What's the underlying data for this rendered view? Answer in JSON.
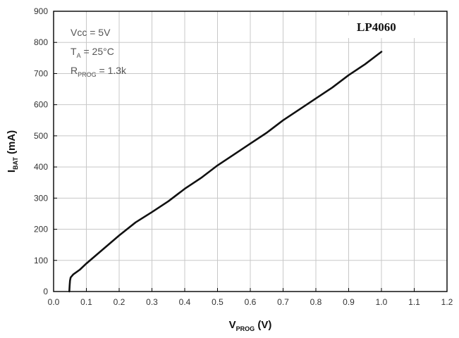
{
  "chart_data": {
    "type": "line",
    "title": "",
    "part_label": "LP4060",
    "xlabel": {
      "main": "V",
      "sub": "PROG",
      "unit": " (V)"
    },
    "ylabel": {
      "main": "I",
      "sub": "BAT",
      "unit": " (mA)"
    },
    "xlim": [
      0.0,
      1.2
    ],
    "ylim": [
      0,
      900
    ],
    "x_ticks": [
      0.0,
      0.1,
      0.2,
      0.3,
      0.4,
      0.5,
      0.6,
      0.7,
      0.8,
      0.9,
      1.0,
      1.1,
      1.2
    ],
    "x_tick_labels": [
      "0.0",
      "0.1",
      "0.2",
      "0.3",
      "0.4",
      "0.5",
      "0.6",
      "0.7",
      "0.8",
      "0.9",
      "1.0",
      "1.1",
      "1.2"
    ],
    "y_ticks": [
      0,
      100,
      200,
      300,
      400,
      500,
      600,
      700,
      800,
      900
    ],
    "y_tick_labels": [
      "0",
      "100",
      "200",
      "300",
      "400",
      "500",
      "600",
      "700",
      "800",
      "900"
    ],
    "grid": true,
    "conditions": [
      {
        "main": "Vcc = 5V",
        "sub": "",
        "rest": ""
      },
      {
        "main": "T",
        "sub": "A",
        "rest": " = 25°C"
      },
      {
        "main": "R",
        "sub": "PROG",
        "rest": " = 1.3k"
      }
    ],
    "series": [
      {
        "x": [
          0.048,
          0.049,
          0.05,
          0.052,
          0.06,
          0.08,
          0.1,
          0.15,
          0.2,
          0.25,
          0.3,
          0.35,
          0.4,
          0.45,
          0.5,
          0.55,
          0.6,
          0.65,
          0.7,
          0.75,
          0.8,
          0.85,
          0.9,
          0.95,
          1.0
        ],
        "y": [
          0,
          20,
          35,
          45,
          55,
          70,
          90,
          135,
          180,
          222,
          255,
          290,
          330,
          365,
          405,
          440,
          475,
          510,
          550,
          585,
          620,
          655,
          695,
          730,
          770
        ],
        "color": "#111111"
      }
    ]
  }
}
